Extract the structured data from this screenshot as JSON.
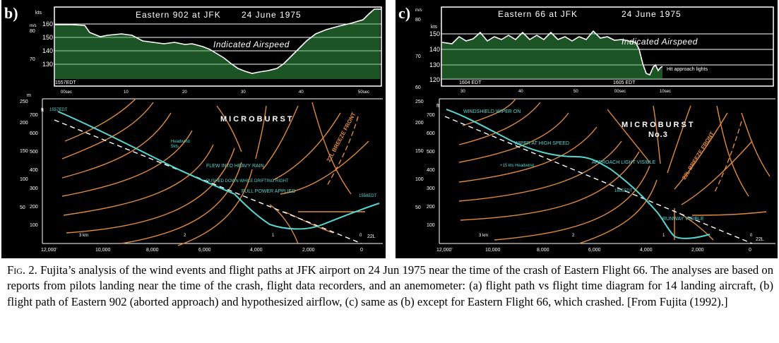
{
  "panel_b": {
    "label": "b)",
    "title": "Eastern 902 at JFK",
    "date": "24 June 1975",
    "airspeed": {
      "title": "Indicated Airspeed",
      "kts_label": "kts",
      "ms_label": "m/s",
      "kts_ticks": [
        "160",
        "150",
        "140",
        "130"
      ],
      "ms_ticks": [
        "80",
        "70"
      ],
      "time_start_label": "1557EDT",
      "time_ticks": [
        "00sec",
        "10",
        "20",
        "30",
        "40",
        "50sec"
      ]
    },
    "profile": {
      "title": "MICROBURST",
      "alt_unit": "ft",
      "alt_m_label": "m",
      "alt_ft_ticks": [
        "700",
        "600",
        "500",
        "400",
        "300",
        "200",
        "100"
      ],
      "alt_m_ticks": [
        "250",
        "200",
        "150",
        "100",
        "50"
      ],
      "x_ticks": [
        "12,000'",
        "10,000",
        "8,000",
        "6,000",
        "4,000",
        "2,000",
        "0"
      ],
      "km_ticks": [
        "3 km",
        "2",
        "1",
        "0"
      ],
      "runway": "22L",
      "annotations": [
        "FLEW INTO HEAVY RAIN",
        "PUSHED DOWN WHILE DRIFTING RIGHT",
        "FULL POWER APPLIED",
        "Headwind",
        "5kts",
        "1557EDT",
        "1558EDT",
        "22L BREEZE FRONT"
      ]
    }
  },
  "panel_c": {
    "label": "c)",
    "title": "Eastern 66 at JFK",
    "date": "24 June 1975",
    "airspeed": {
      "title": "Indicated Airspeed",
      "kts_label": "kts",
      "ms_label": "m/s",
      "kts_ticks": [
        "150",
        "140",
        "130",
        "120"
      ],
      "ms_ticks": [
        "80",
        "70",
        "60"
      ],
      "time_start_label": "1604 EDT",
      "time_mid_label": "1605 EDT",
      "time_ticks": [
        "30",
        "40",
        "50",
        "00sec",
        "10sec"
      ],
      "event": "Hit approach lights"
    },
    "profile": {
      "title": "MICROBURST",
      "subtitle": "No.3",
      "alt_unit": "ft",
      "alt_ft_ticks": [
        "700",
        "600",
        "500",
        "400",
        "300",
        "200",
        "100"
      ],
      "alt_m_ticks": [
        "250",
        "200",
        "150",
        "100",
        "50"
      ],
      "x_ticks": [
        "12,000'",
        "10,000",
        "8,000",
        "6,000",
        "4,000",
        "2,000",
        "0"
      ],
      "km_ticks": [
        "3 km",
        "2",
        "1",
        "0"
      ],
      "runway": "22L",
      "annotations": [
        "WINDSHIELD WIPER ON",
        "WIPER AT HIGH SPEED",
        "APPROACH LIGHT VISIBLE",
        "RUNWAY VISIBLE",
        "1605EDT",
        "+15 kts Headwind",
        "22L BREEZE FRONT"
      ]
    }
  },
  "caption": {
    "fig": "Fig. 2.",
    "text": "Fujita’s analysis of the wind events and flight paths at JFK airport on 24 Jun 1975 near the time of the crash of Eastern Flight 66. The analyses are based on reports from pilots landing near the time of the crash, flight data recorders, and an anemometer: (a) flight path vs flight time diagram for 14 landing aircraft, (b) flight path of Eastern 902 (aborted approach) and hypothesized airflow, (c) same as (b) except for Eastern Flight 66, which crashed. [From Fujita (1992).]"
  },
  "colors": {
    "background": "#000000",
    "grid": "#ffffff",
    "airspeed_bars": "#3aa84a",
    "streamlines": "#e08a3c",
    "flight_path": "#55d6d0",
    "glide_slope": "#ffffff"
  }
}
